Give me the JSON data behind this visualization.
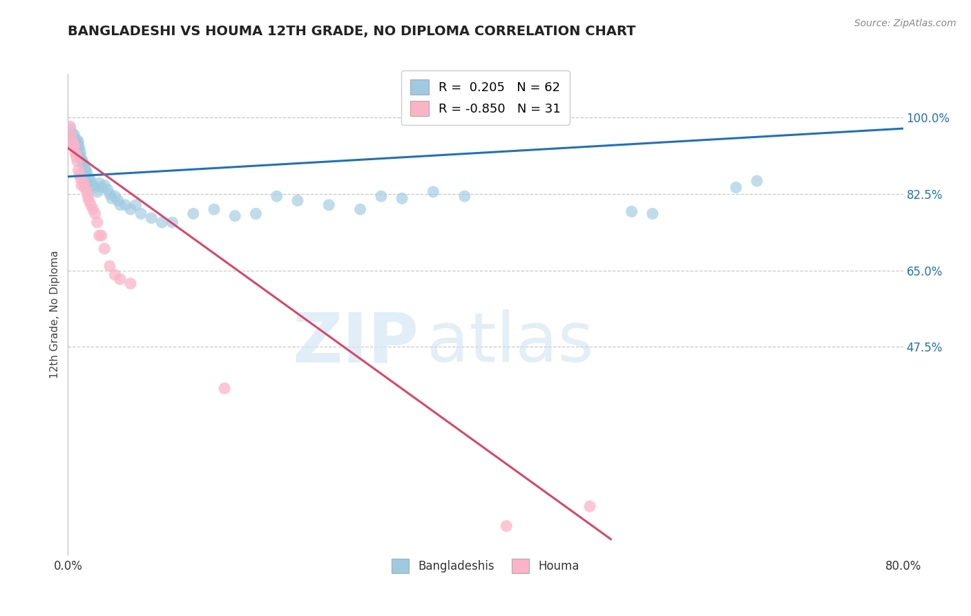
{
  "title": "BANGLADESHI VS HOUMA 12TH GRADE, NO DIPLOMA CORRELATION CHART",
  "source": "Source: ZipAtlas.com",
  "ylabel": "12th Grade, No Diploma",
  "x_min": 0.0,
  "x_max": 0.8,
  "y_min": 0.0,
  "y_max": 1.1,
  "y_ticks_right": [
    0.475,
    0.65,
    0.825,
    1.0
  ],
  "y_tick_labels_right": [
    "47.5%",
    "65.0%",
    "82.5%",
    "100.0%"
  ],
  "legend_r1": "R =  0.205",
  "legend_n1": "N = 62",
  "legend_r2": "R = -0.850",
  "legend_n2": "N = 31",
  "blue_color": "#9ecae1",
  "pink_color": "#fbb4c7",
  "blue_line_color": "#2171b5",
  "pink_line_color": "#d6476b",
  "watermark_zip": "ZIP",
  "watermark_atlas": "atlas",
  "blue_scatter_x": [
    0.002,
    0.003,
    0.004,
    0.005,
    0.005,
    0.006,
    0.006,
    0.007,
    0.007,
    0.008,
    0.008,
    0.009,
    0.009,
    0.01,
    0.01,
    0.011,
    0.012,
    0.012,
    0.013,
    0.014,
    0.015,
    0.016,
    0.017,
    0.018,
    0.019,
    0.02,
    0.022,
    0.024,
    0.026,
    0.028,
    0.03,
    0.032,
    0.035,
    0.038,
    0.04,
    0.042,
    0.045,
    0.048,
    0.05,
    0.055,
    0.06,
    0.065,
    0.07,
    0.08,
    0.09,
    0.1,
    0.12,
    0.14,
    0.16,
    0.18,
    0.2,
    0.22,
    0.25,
    0.28,
    0.3,
    0.32,
    0.35,
    0.38,
    0.54,
    0.56,
    0.64,
    0.66
  ],
  "blue_scatter_y": [
    0.975,
    0.96,
    0.965,
    0.955,
    0.945,
    0.96,
    0.95,
    0.94,
    0.935,
    0.95,
    0.945,
    0.94,
    0.93,
    0.945,
    0.935,
    0.93,
    0.92,
    0.91,
    0.905,
    0.9,
    0.895,
    0.885,
    0.88,
    0.875,
    0.865,
    0.86,
    0.855,
    0.845,
    0.84,
    0.83,
    0.85,
    0.84,
    0.845,
    0.835,
    0.825,
    0.815,
    0.82,
    0.81,
    0.8,
    0.8,
    0.79,
    0.8,
    0.78,
    0.77,
    0.76,
    0.76,
    0.78,
    0.79,
    0.775,
    0.78,
    0.82,
    0.81,
    0.8,
    0.79,
    0.82,
    0.815,
    0.83,
    0.82,
    0.785,
    0.78,
    0.84,
    0.855
  ],
  "pink_scatter_x": [
    0.002,
    0.003,
    0.004,
    0.005,
    0.006,
    0.007,
    0.008,
    0.009,
    0.01,
    0.011,
    0.012,
    0.013,
    0.015,
    0.016,
    0.018,
    0.019,
    0.02,
    0.022,
    0.024,
    0.026,
    0.028,
    0.03,
    0.032,
    0.035,
    0.04,
    0.045,
    0.05,
    0.06,
    0.15,
    0.42,
    0.5
  ],
  "pink_scatter_y": [
    0.98,
    0.96,
    0.945,
    0.94,
    0.935,
    0.92,
    0.91,
    0.9,
    0.88,
    0.87,
    0.86,
    0.845,
    0.85,
    0.84,
    0.83,
    0.82,
    0.81,
    0.8,
    0.79,
    0.78,
    0.76,
    0.73,
    0.73,
    0.7,
    0.66,
    0.64,
    0.63,
    0.62,
    0.38,
    0.065,
    0.11
  ],
  "blue_trend_x": [
    0.0,
    0.8
  ],
  "blue_trend_y": [
    0.865,
    0.975
  ],
  "pink_trend_x": [
    0.0,
    0.52
  ],
  "pink_trend_y": [
    0.93,
    0.035
  ],
  "grid_color": "#c8c8c8",
  "bg_color": "#ffffff"
}
